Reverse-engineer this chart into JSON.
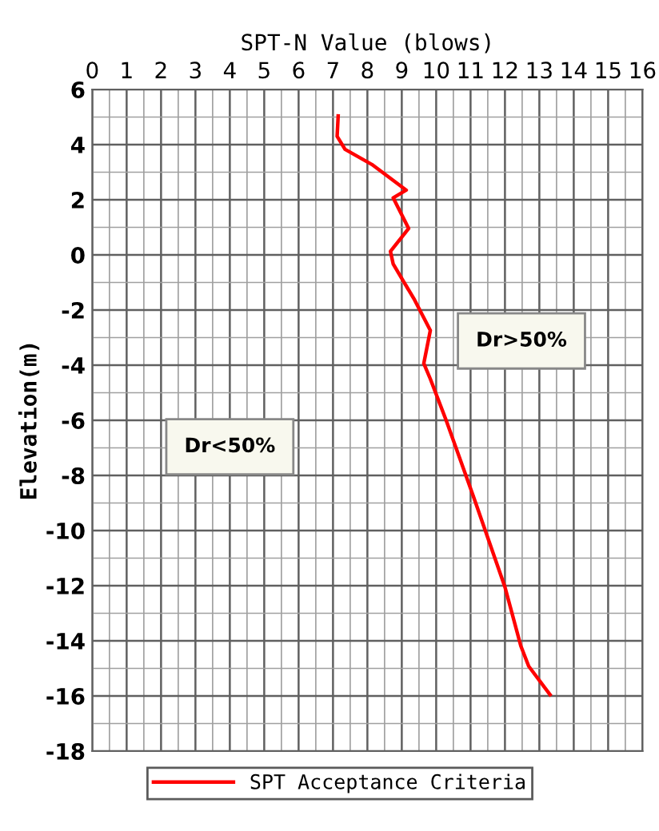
{
  "chart_data": {
    "type": "line",
    "xlabel": "SPT-N Value (blows)",
    "ylabel": "Elevation(m)",
    "xlim": [
      0,
      16
    ],
    "xticks": [
      0,
      1,
      2,
      3,
      4,
      5,
      6,
      7,
      8,
      9,
      10,
      11,
      12,
      13,
      14,
      15,
      16
    ],
    "ylim": [
      -18,
      6
    ],
    "yticks": [
      -18,
      -16,
      -14,
      -12,
      -10,
      -8,
      -6,
      -4,
      -2,
      0,
      2,
      4,
      6
    ],
    "grid": true,
    "legend": "bottom",
    "marker": "none",
    "line_style": "solid",
    "annotations": [
      "Dr>50%",
      "Dr<50%"
    ],
    "series": [
      {
        "name": "SPT Acceptance Criteria",
        "color": "#ff0000",
        "x": [
          7.15,
          7.12,
          7.35,
          8.13,
          9.13,
          8.75,
          9.2,
          8.67,
          8.75,
          9.37,
          9.83,
          9.64,
          9.83,
          10.29,
          11.07,
          12.0,
          12.46,
          12.69,
          13.31
        ],
        "values": [
          5.04,
          4.3,
          3.83,
          3.28,
          2.35,
          2.07,
          0.96,
          0.13,
          -0.33,
          -1.63,
          -2.74,
          -3.94,
          -4.5,
          -6.0,
          -8.72,
          -12.05,
          -14.18,
          -14.92,
          -15.95
        ]
      }
    ]
  }
}
